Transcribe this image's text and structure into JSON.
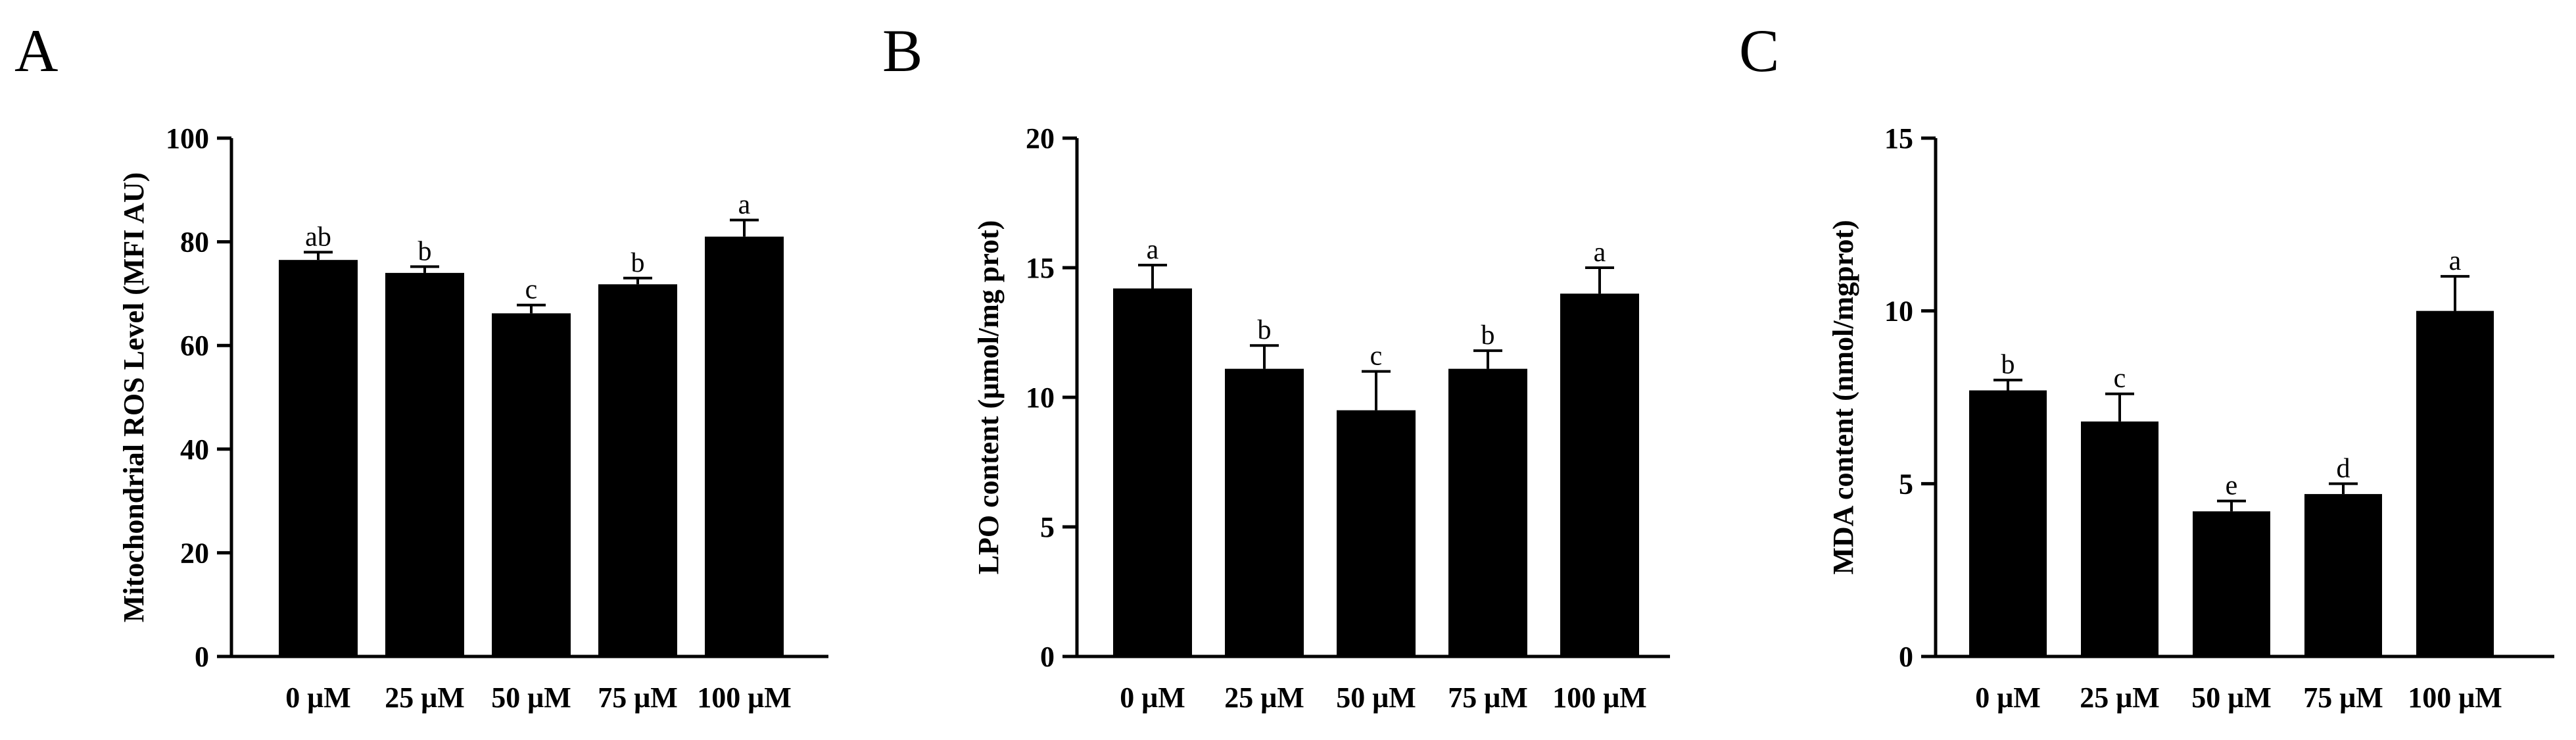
{
  "chart_data": [
    {
      "type": "bar",
      "panel": "A",
      "title": "",
      "xlabel": "",
      "ylabel": "Mitochondrial ROS Level (MFI AU)",
      "categories": [
        "0 μM",
        "25 μM",
        "50 μM",
        "75 μM",
        "100 μM"
      ],
      "values": [
        76.5,
        74.0,
        66.2,
        71.8,
        81.0
      ],
      "errors": [
        1.5,
        1.2,
        1.6,
        1.2,
        3.2
      ],
      "significance": [
        "ab",
        "b",
        "c",
        "b",
        "a"
      ],
      "ylim": [
        0,
        100
      ],
      "yticks": [
        0,
        20,
        40,
        60,
        80,
        100
      ],
      "bar_color": "#000000"
    },
    {
      "type": "bar",
      "panel": "B",
      "title": "",
      "xlabel": "",
      "ylabel": "LPO content (μmol/mg prot)",
      "categories": [
        "0 μM",
        "25 μM",
        "50 μM",
        "75 μM",
        "100 μM"
      ],
      "values": [
        14.2,
        11.1,
        9.5,
        11.1,
        14.0
      ],
      "errors": [
        0.9,
        0.9,
        1.5,
        0.7,
        1.0
      ],
      "significance": [
        "a",
        "b",
        "c",
        "b",
        "a"
      ],
      "ylim": [
        0,
        20
      ],
      "yticks": [
        0,
        5,
        10,
        15,
        20
      ],
      "bar_color": "#000000"
    },
    {
      "type": "bar",
      "panel": "C",
      "title": "",
      "xlabel": "",
      "ylabel": "MDA content (nmol/mgprot)",
      "categories": [
        "0 μM",
        "25 μM",
        "50 μM",
        "75 μM",
        "100 μM"
      ],
      "values": [
        7.7,
        6.8,
        4.2,
        4.7,
        10.0
      ],
      "errors": [
        0.3,
        0.8,
        0.3,
        0.3,
        1.0
      ],
      "significance": [
        "b",
        "c",
        "e",
        "d",
        "a"
      ],
      "ylim": [
        0,
        15
      ],
      "yticks": [
        0,
        5,
        10,
        15
      ],
      "bar_color": "#000000"
    }
  ]
}
